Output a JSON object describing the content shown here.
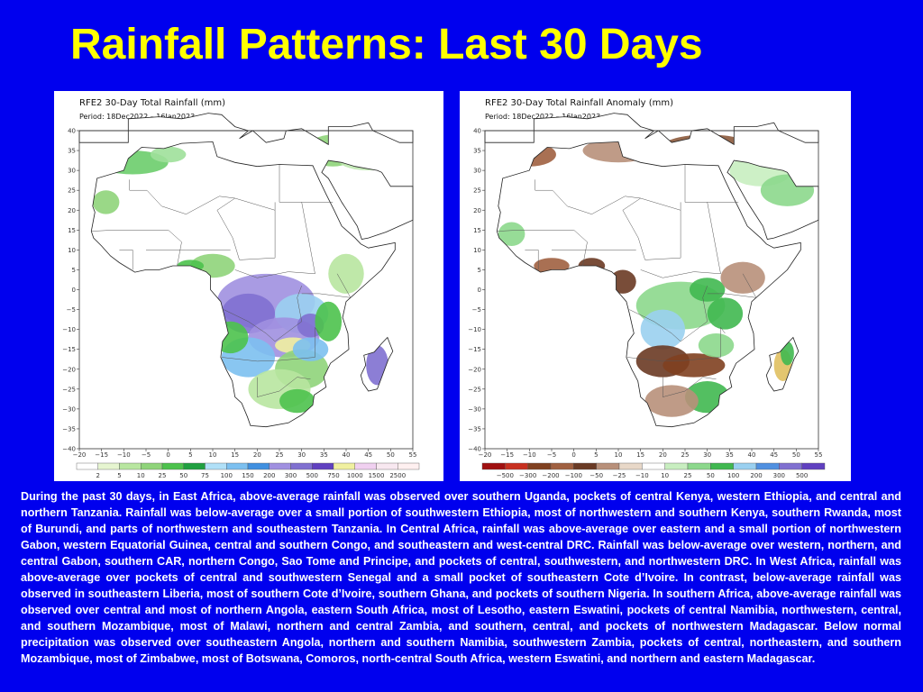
{
  "slide": {
    "title": "Rainfall Patterns: Last 30 Days"
  },
  "maps": [
    {
      "title": "RFE2 30-Day Total Rainfall (mm)",
      "period": "Period: 18Dec2022 – 16Jan2023",
      "y_ticks": [
        "40",
        "35",
        "30",
        "25",
        "20",
        "15",
        "10",
        "5",
        "0",
        "−5",
        "−10",
        "−15",
        "−20",
        "−25",
        "−30",
        "−35",
        "−40"
      ],
      "x_ticks": [
        "−20",
        "−15",
        "−10",
        "−5",
        "0",
        "5",
        "10",
        "15",
        "20",
        "25",
        "30",
        "35",
        "40",
        "45",
        "50",
        "55"
      ],
      "colorbar_labels": [
        "2",
        "5",
        "10",
        "25",
        "50",
        "75",
        "100",
        "150",
        "200",
        "300",
        "500",
        "750",
        "1000",
        "1500",
        "2500"
      ],
      "colorbar_colors": [
        "#ffffff",
        "#e6f5d0",
        "#b8e6a0",
        "#8fd47a",
        "#4cc24c",
        "#20a040",
        "#b0e0f8",
        "#7cc0f0",
        "#4090e0",
        "#a090e0",
        "#8070d0",
        "#6040c0",
        "#f0f0a0",
        "#f0d0f0",
        "#f8e8f0",
        "#fff0f0"
      ]
    },
    {
      "title": "RFE2 30-Day Total Rainfall Anomaly (mm)",
      "period": "Period: 18Dec2022 – 16Jan2023",
      "y_ticks": [
        "40",
        "35",
        "30",
        "25",
        "20",
        "15",
        "10",
        "5",
        "0",
        "−5",
        "−10",
        "−15",
        "−20",
        "−25",
        "−30",
        "−35",
        "−40"
      ],
      "x_ticks": [
        "−20",
        "−15",
        "−10",
        "−5",
        "0",
        "5",
        "10",
        "15",
        "20",
        "25",
        "30",
        "35",
        "40",
        "45",
        "50",
        "55"
      ],
      "colorbar_labels": [
        "−500",
        "−300",
        "−200",
        "−100",
        "−50",
        "−25",
        "−10",
        "10",
        "25",
        "50",
        "100",
        "200",
        "300",
        "500"
      ],
      "colorbar_colors": [
        "#a01010",
        "#c83020",
        "#804020",
        "#a06040",
        "#6a3a24",
        "#b8907a",
        "#e8d8c8",
        "#ffffff",
        "#c8eec0",
        "#8cd88c",
        "#40b850",
        "#9ad0f0",
        "#5090e0",
        "#8070d0",
        "#6040c0"
      ]
    }
  ],
  "description": "During the past 30 days, in East Africa, above-average rainfall was observed over southern Uganda, pockets of central Kenya, western Ethiopia, and central and northern Tanzania. Rainfall was below-average over a small portion of southwestern Ethiopia, most of northwestern and southern Kenya, southern Rwanda, most of Burundi, and parts of northwestern and southeastern Tanzania. In Central Africa, rainfall was above-average over eastern and a small portion of northwestern Gabon, western Equatorial Guinea, central and southern Congo, and southeastern and west-central DRC. Rainfall was below-average over western, northern, and central Gabon, southern CAR, northern Congo, Sao Tome and Principe, and pockets of central, southwestern, and northwestern DRC. In West Africa, rainfall was above-average over pockets of central and southwestern Senegal and a small pocket of southeastern Cote d’Ivoire. In contrast, below-average rainfall was observed in southeastern Liberia, most of southern Cote d’Ivoire, southern Ghana, and pockets of southern Nigeria. In southern Africa, above-average rainfall was observed over central and most of northern Angola, eastern South Africa, most of Lesotho, eastern Eswatini, pockets of central Namibia, northwestern, central, and southern Mozambique, most of Malawi, northern and central Zambia, and southern, central, and pockets of northwestern Madagascar. Below normal precipitation was observed over southeastern Angola, northern and southern Namibia, southwestern Zambia, pockets of central, northeastern, and southern Mozambique, most of Zimbabwe, most of Botswana, Comoros, north-central South Africa, western Eswatini, and northern and eastern Madagascar.",
  "colors": {
    "background": "#0000ee",
    "title": "#ffff00",
    "text": "#ffffff"
  }
}
